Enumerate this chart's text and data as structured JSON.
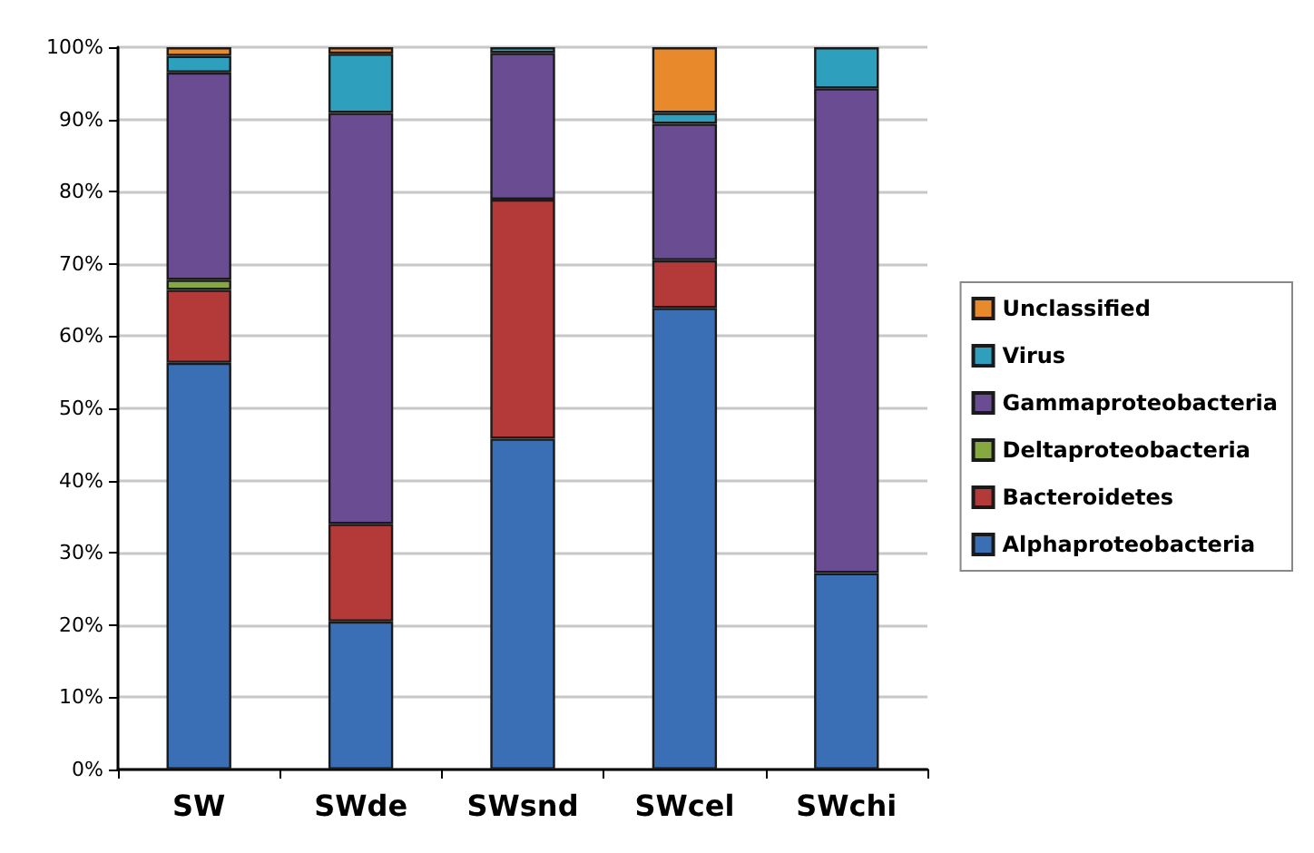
{
  "chart_data": {
    "type": "bar",
    "stacked": true,
    "categories": [
      "SW",
      "SWde",
      "SWsnd",
      "SWcel",
      "SWchi"
    ],
    "series": [
      {
        "name": "Alphaproteobacteria",
        "color": "#3a6fb5",
        "values": [
          56.3,
          20.5,
          45.8,
          63.9,
          27.2
        ]
      },
      {
        "name": "Bacteroidetes",
        "color": "#b33a38",
        "values": [
          10.1,
          13.5,
          33.1,
          6.6,
          0
        ]
      },
      {
        "name": "Deltaproteobacteria",
        "color": "#86a840",
        "values": [
          1.4,
          0,
          0,
          0,
          0
        ]
      },
      {
        "name": "Gammaproteobacteria",
        "color": "#6a4c93",
        "values": [
          28.7,
          56.9,
          20.3,
          18.9,
          67.1
        ]
      },
      {
        "name": "Virus",
        "color": "#2e9fbd",
        "values": [
          2.3,
          8.2,
          0.8,
          1.5,
          5.7
        ]
      },
      {
        "name": "Unclassified",
        "color": "#e88a2c",
        "values": [
          1.2,
          0.9,
          0,
          9.1,
          0
        ]
      }
    ],
    "ylim": [
      0,
      100
    ],
    "yticks": [
      {
        "value": 0,
        "label": "0%"
      },
      {
        "value": 10,
        "label": "10%"
      },
      {
        "value": 20,
        "label": "20%"
      },
      {
        "value": 30,
        "label": "30%"
      },
      {
        "value": 40,
        "label": "40%"
      },
      {
        "value": 50,
        "label": "50%"
      },
      {
        "value": 60,
        "label": "60%"
      },
      {
        "value": 70,
        "label": "70%"
      },
      {
        "value": 80,
        "label": "80%"
      },
      {
        "value": 90,
        "label": "90%"
      },
      {
        "value": 100,
        "label": "100%"
      }
    ],
    "grid": "y",
    "legend": "right"
  }
}
